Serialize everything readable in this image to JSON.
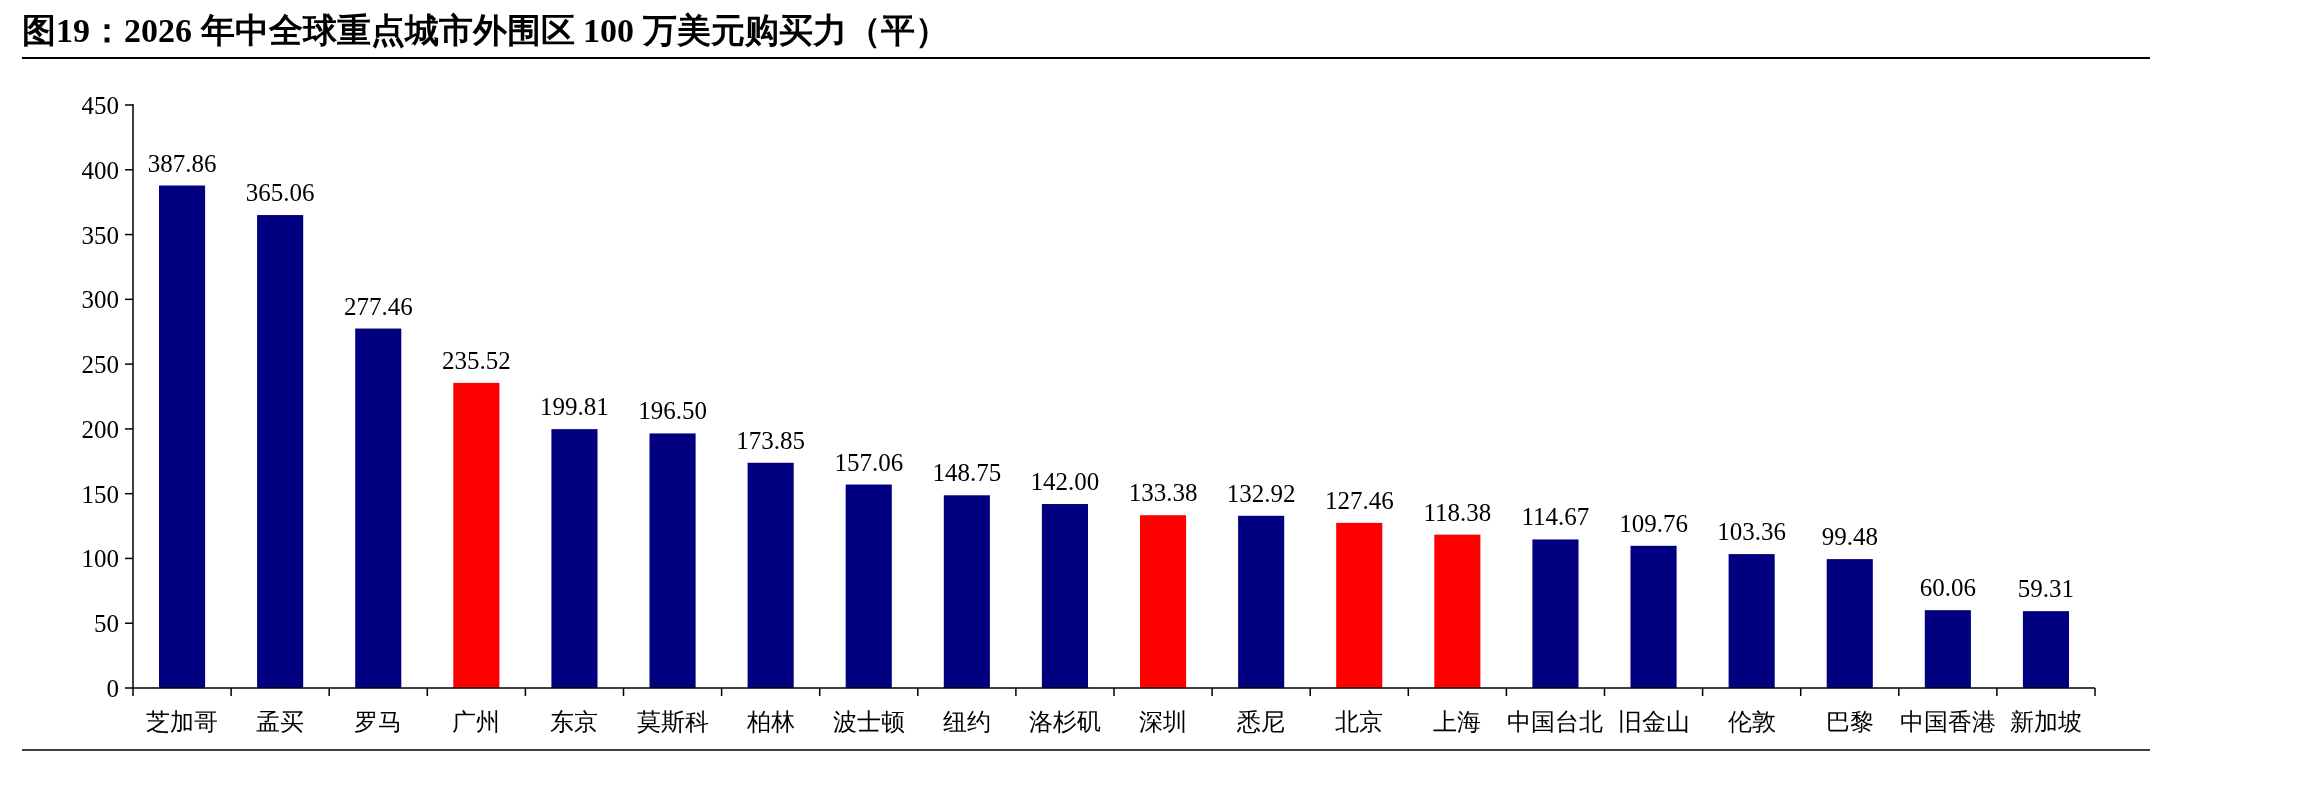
{
  "chart_data": {
    "type": "bar",
    "title": "图19：2026 年中全球重点城市外围区 100 万美元购买力（平）",
    "categories": [
      "芝加哥",
      "孟买",
      "罗马",
      "广州",
      "东京",
      "莫斯科",
      "柏林",
      "波士顿",
      "纽约",
      "洛杉矶",
      "深圳",
      "悉尼",
      "北京",
      "上海",
      "中国台北",
      "旧金山",
      "伦敦",
      "巴黎",
      "中国香港",
      "新加坡"
    ],
    "values": [
      387.86,
      365.06,
      277.46,
      235.52,
      199.81,
      196.5,
      173.85,
      157.06,
      148.75,
      142.0,
      133.38,
      132.92,
      127.46,
      118.38,
      114.67,
      109.76,
      103.36,
      99.48,
      60.06,
      59.31
    ],
    "value_labels": [
      "387.86",
      "365.06",
      "277.46",
      "235.52",
      "199.81",
      "196.50",
      "173.85",
      "157.06",
      "148.75",
      "142.00",
      "133.38",
      "132.92",
      "127.46",
      "118.38",
      "114.67",
      "109.76",
      "103.36",
      "99.48",
      "60.06",
      "59.31"
    ],
    "colors": [
      "#000080",
      "#000080",
      "#000080",
      "#ff0000",
      "#000080",
      "#000080",
      "#000080",
      "#000080",
      "#000080",
      "#000080",
      "#ff0000",
      "#000080",
      "#ff0000",
      "#ff0000",
      "#000080",
      "#000080",
      "#000080",
      "#000080",
      "#000080",
      "#000080"
    ],
    "ylim": [
      0,
      450
    ],
    "yticks": [
      0,
      50,
      100,
      150,
      200,
      250,
      300,
      350,
      400,
      450
    ]
  }
}
